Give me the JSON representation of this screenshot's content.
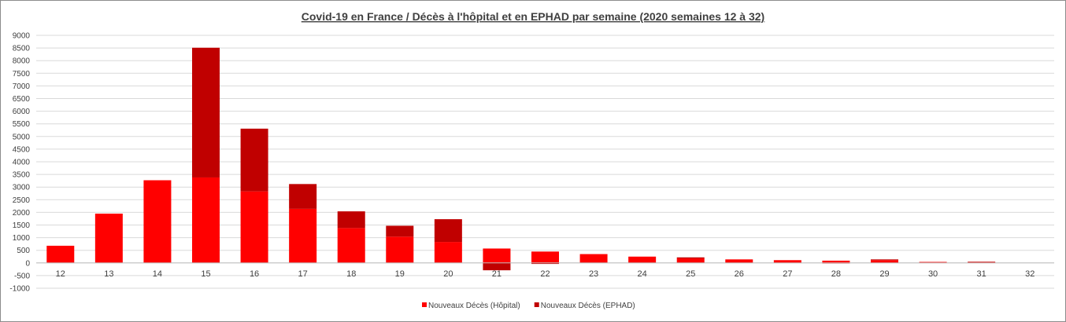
{
  "chart_data": {
    "type": "bar",
    "stacked": true,
    "title": "Covid-19 en France / Décès à l'hôpital et en EPHAD par semaine (2020 semaines 12 à 32)",
    "xlabel": "",
    "ylabel": "",
    "ylim": [
      -1000,
      9000
    ],
    "yticks": [
      9000,
      8500,
      8000,
      7500,
      7000,
      6500,
      6000,
      5500,
      5000,
      4500,
      4000,
      3500,
      3000,
      2500,
      2000,
      1500,
      1000,
      500,
      0,
      -500,
      -1000
    ],
    "grid": true,
    "legend_position": "bottom",
    "categories": [
      "12",
      "13",
      "14",
      "15",
      "16",
      "17",
      "18",
      "19",
      "20",
      "21",
      "22",
      "23",
      "24",
      "25",
      "26",
      "27",
      "28",
      "29",
      "30",
      "31",
      "32"
    ],
    "series": [
      {
        "name": "Nouveaux Décès (Hôpital)",
        "color": "#ff0000",
        "values": [
          680,
          1950,
          3270,
          3380,
          2830,
          2140,
          1380,
          1040,
          830,
          570,
          450,
          350,
          250,
          180,
          140,
          110,
          90,
          110,
          40,
          30,
          0
        ]
      },
      {
        "name": "Nouveaux Décès (EPHAD)",
        "color": "#c00000",
        "values": [
          0,
          0,
          0,
          5130,
          2480,
          980,
          660,
          430,
          900,
          -290,
          -40,
          0,
          0,
          40,
          0,
          0,
          -20,
          30,
          0,
          20,
          0
        ]
      }
    ]
  }
}
